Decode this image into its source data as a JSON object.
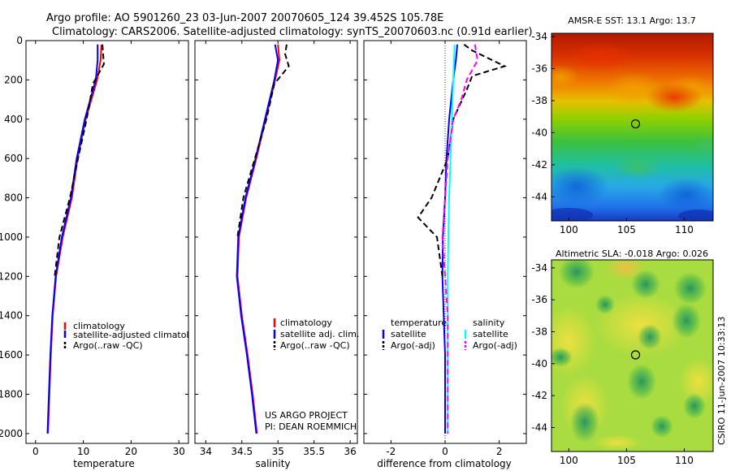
{
  "figure": {
    "title_line1": "Argo profile: AO 5901260_23 03-Jun-2007 20070605_124 39.452S 105.78E",
    "title_line2": "Climatology: CARS2006. Satellite-adjusted climatology: synTS_20070603.nc (0.91d earlier)",
    "side_caption": "CSIRO 11-Jun-2007 10:33:13",
    "project_line1": "US ARGO PROJECT",
    "project_line2": "PI: DEAN ROEMMICH"
  },
  "chart_data": [
    {
      "id": "temperature",
      "type": "line",
      "xlabel": "temperature",
      "ylabel": "",
      "xlim": [
        -2,
        32
      ],
      "ylim": [
        2050,
        0
      ],
      "xticks": [
        0,
        10,
        20,
        30
      ],
      "yticks": [
        0,
        200,
        400,
        600,
        800,
        1000,
        1200,
        1400,
        1600,
        1800,
        2000
      ],
      "legend": [
        "climatology",
        "satellite-adjusted climatology",
        "Argo(..raw -QC)"
      ],
      "series": [
        {
          "name": "climatology",
          "color": "#ff0000",
          "dash": "",
          "points": [
            [
              13.8,
              20
            ],
            [
              13.6,
              100
            ],
            [
              12.9,
              200
            ],
            [
              10.5,
              400
            ],
            [
              8.8,
              600
            ],
            [
              7.6,
              800
            ],
            [
              5.7,
              1000
            ],
            [
              4.3,
              1200
            ],
            [
              3.6,
              1400
            ],
            [
              3.2,
              1600
            ],
            [
              2.9,
              1800
            ],
            [
              2.6,
              2000
            ]
          ]
        },
        {
          "name": "satellite-adjusted climatology",
          "color": "#0000ff",
          "dash": "",
          "points": [
            [
              13.0,
              20
            ],
            [
              13.0,
              100
            ],
            [
              12.6,
              200
            ],
            [
              10.3,
              400
            ],
            [
              8.6,
              600
            ],
            [
              7.4,
              800
            ],
            [
              5.5,
              1000
            ],
            [
              4.2,
              1200
            ],
            [
              3.5,
              1400
            ],
            [
              3.1,
              1600
            ],
            [
              2.8,
              1800
            ],
            [
              2.5,
              2000
            ]
          ]
        },
        {
          "name": "Argo(..raw -QC)",
          "color": "#000000",
          "dash": "7,4",
          "points": [
            [
              14.0,
              20
            ],
            [
              14.3,
              120
            ],
            [
              12.0,
              220
            ],
            [
              10.7,
              400
            ],
            [
              8.9,
              600
            ],
            [
              7.2,
              800
            ],
            [
              5.0,
              1000
            ],
            [
              4.0,
              1200
            ]
          ]
        }
      ]
    },
    {
      "id": "salinity",
      "type": "line",
      "xlabel": "salinity",
      "ylabel": "",
      "xlim": [
        33.85,
        36.1
      ],
      "ylim": [
        2050,
        0
      ],
      "xticks": [
        34,
        34.5,
        35,
        35.5,
        36
      ],
      "legend": [
        "climatology",
        "satellite adj. clim.",
        "Argo(..raw -QC)"
      ],
      "series": [
        {
          "name": "climatology",
          "color": "#ff0000",
          "dash": "",
          "points": [
            [
              35.0,
              20
            ],
            [
              35.02,
              100
            ],
            [
              34.96,
              200
            ],
            [
              34.83,
              400
            ],
            [
              34.7,
              600
            ],
            [
              34.56,
              800
            ],
            [
              34.46,
              1000
            ],
            [
              34.44,
              1200
            ],
            [
              34.5,
              1400
            ],
            [
              34.58,
              1600
            ],
            [
              34.65,
              1800
            ],
            [
              34.71,
              2000
            ]
          ]
        },
        {
          "name": "satellite adj. clim.",
          "color": "#0000ff",
          "dash": "",
          "points": [
            [
              34.96,
              20
            ],
            [
              35.0,
              100
            ],
            [
              34.95,
              200
            ],
            [
              34.82,
              400
            ],
            [
              34.69,
              600
            ],
            [
              34.55,
              800
            ],
            [
              34.45,
              1000
            ],
            [
              34.43,
              1200
            ],
            [
              34.49,
              1400
            ],
            [
              34.57,
              1600
            ],
            [
              34.64,
              1800
            ],
            [
              34.7,
              2000
            ]
          ]
        },
        {
          "name": "Argo(..raw -QC)",
          "color": "#000000",
          "dash": "7,4",
          "points": [
            [
              35.12,
              20
            ],
            [
              35.1,
              70
            ],
            [
              35.15,
              130
            ],
            [
              34.95,
              220
            ],
            [
              34.84,
              400
            ],
            [
              34.68,
              600
            ],
            [
              34.52,
              800
            ],
            [
              34.44,
              1000
            ]
          ]
        }
      ]
    },
    {
      "id": "difference",
      "type": "line",
      "xlabel": "difference from climatology",
      "ylabel": "",
      "xlim": [
        -3,
        3
      ],
      "ylim": [
        2050,
        0
      ],
      "xticks": [
        -2,
        0,
        2
      ],
      "legend_temperature": [
        "temperature",
        "satellite",
        "Argo(-adj)"
      ],
      "legend_salinity": [
        "salinity",
        "satellite",
        "Argo(-adj)"
      ],
      "series": [
        {
          "name": "temperature satellite",
          "color": "#0000ff",
          "dash": "",
          "points": [
            [
              0.45,
              20
            ],
            [
              0.4,
              100
            ],
            [
              0.3,
              200
            ],
            [
              0.15,
              400
            ],
            [
              0.05,
              600
            ],
            [
              0.0,
              800
            ],
            [
              -0.08,
              1000
            ],
            [
              -0.1,
              1200
            ],
            [
              -0.05,
              1400
            ],
            [
              0.0,
              1600
            ],
            [
              0.0,
              1800
            ],
            [
              0.0,
              2000
            ]
          ]
        },
        {
          "name": "temperature Argo(-adj)",
          "color": "#000000",
          "dash": "7,4",
          "points": [
            [
              0.7,
              20
            ],
            [
              1.0,
              50
            ],
            [
              2.2,
              130
            ],
            [
              1.0,
              180
            ],
            [
              0.8,
              250
            ],
            [
              0.3,
              400
            ],
            [
              0.1,
              600
            ],
            [
              -0.5,
              800
            ],
            [
              -1.0,
              900
            ],
            [
              -0.3,
              1000
            ],
            [
              -0.1,
              1200
            ]
          ]
        },
        {
          "name": "salinity satellite",
          "color": "#00ffff",
          "dash": "",
          "points": [
            [
              0.35,
              20
            ],
            [
              0.3,
              200
            ],
            [
              0.25,
              400
            ],
            [
              0.2,
              600
            ],
            [
              0.15,
              800
            ],
            [
              0.12,
              1000
            ],
            [
              0.1,
              1200
            ],
            [
              0.1,
              1400
            ],
            [
              0.1,
              1600
            ],
            [
              0.1,
              1800
            ],
            [
              0.1,
              2000
            ]
          ]
        },
        {
          "name": "salinity Argo(-adj)",
          "color": "#ff00ff",
          "dash": "7,4",
          "points": [
            [
              1.1,
              20
            ],
            [
              1.2,
              100
            ],
            [
              0.8,
              200
            ],
            [
              0.6,
              300
            ],
            [
              0.3,
              400
            ],
            [
              0.1,
              600
            ],
            [
              0.0,
              800
            ],
            [
              -0.1,
              1000
            ],
            [
              0.0,
              1200
            ],
            [
              0.1,
              1400
            ],
            [
              0.1,
              2000
            ]
          ]
        }
      ]
    },
    {
      "id": "sst-map",
      "type": "heatmap",
      "title": "AMSR-E SST: 13.1  Argo: 13.7",
      "xlim": [
        98.5,
        112.5
      ],
      "ylim": [
        -45.5,
        -33.8
      ],
      "xticks": [
        100,
        105,
        110
      ],
      "yticks": [
        -34,
        -36,
        -38,
        -40,
        -42,
        -44
      ],
      "marker": {
        "lon": 105.78,
        "lat": -39.45
      }
    },
    {
      "id": "sla-map",
      "type": "heatmap",
      "title": "Altimetric SLA: -0.018  Argo: 0.026",
      "xlim": [
        98.5,
        112.5
      ],
      "ylim": [
        -45.5,
        -33.5
      ],
      "xticks": [
        100,
        105,
        110
      ],
      "yticks": [
        -34,
        -36,
        -38,
        -40,
        -42,
        -44
      ],
      "marker": {
        "lon": 105.78,
        "lat": -39.45
      }
    }
  ]
}
